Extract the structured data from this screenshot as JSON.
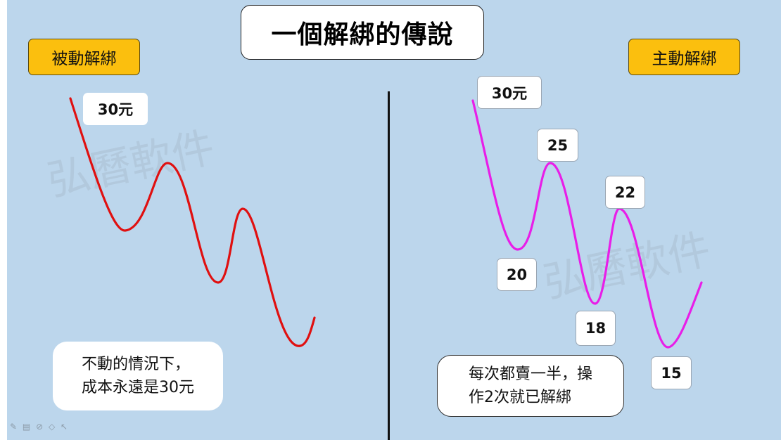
{
  "title": "一個解綁的傳說",
  "left": {
    "tag": "被動解綁",
    "price_label": "30元",
    "note_line1": "不動的情況下，",
    "note_line2": "成本永遠是30元"
  },
  "right": {
    "tag": "主動解綁",
    "prices": [
      "30元",
      "25",
      "20",
      "22",
      "18",
      "15"
    ],
    "note_line1": "每次都賣一半，操",
    "note_line2": "作2次就已解綁"
  },
  "watermark": "弘曆軟件",
  "colors": {
    "background": "#bcd6ec",
    "tag_fill": "#fbbf0e",
    "left_curve": "#e01010",
    "right_curve": "#e81ee8"
  }
}
